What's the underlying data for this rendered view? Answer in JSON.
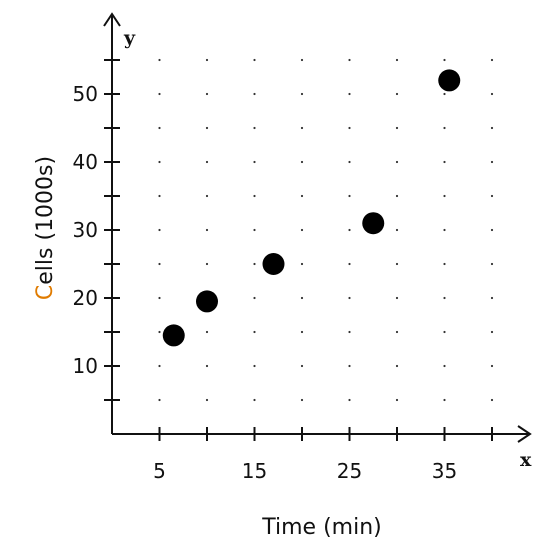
{
  "chart_data": {
    "type": "scatter",
    "xlabel": "Time (min)",
    "ylabel_first_char": "C",
    "ylabel_rest": "ells (1000s)",
    "ylabel_first_char_color": "#e07b00",
    "axis_letters": {
      "x": "x",
      "y": "y"
    },
    "x_ticks": [
      5,
      15,
      25,
      35
    ],
    "y_ticks": [
      10,
      20,
      30,
      40,
      50
    ],
    "xlim": [
      0,
      40
    ],
    "ylim": [
      0,
      55
    ],
    "grid": "dotted",
    "marker_color": "#000000",
    "points": [
      {
        "x": 6.5,
        "y": 14.5
      },
      {
        "x": 10,
        "y": 19.5
      },
      {
        "x": 17,
        "y": 25
      },
      {
        "x": 27.5,
        "y": 31
      },
      {
        "x": 35.5,
        "y": 52
      }
    ]
  }
}
